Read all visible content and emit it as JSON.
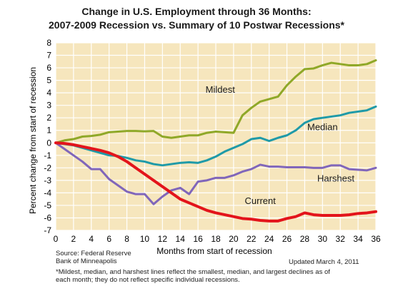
{
  "title_line1": "Change in U.S. Employment through 36 Months:",
  "title_line2": "2007-2009 Recession vs. Summary of 10 Postwar Recessions*",
  "source_line1": "Source: Federal Reserve",
  "source_line2": "Bank of Minneapolis",
  "updated": "Updated March 4, 2011",
  "footnote_line1": "*Mildest, median, and harshest lines reflect the smallest, median, and largest declines as of",
  "footnote_line2": "each month; they do not reflect specific individual recessions.",
  "colors": {
    "plot_bg": "#f6e6bd",
    "mildest": "#8fa828",
    "median": "#1f9aa8",
    "harshest": "#8066ba",
    "current": "#e3141b",
    "grid": "#ffffff"
  },
  "chart_data": {
    "type": "line",
    "xlabel": "Months from start of recession",
    "ylabel": "Percent change from start of recession",
    "xlim": [
      0,
      36
    ],
    "ylim": [
      -7,
      8
    ],
    "xticks": [
      0,
      2,
      4,
      6,
      8,
      10,
      12,
      14,
      16,
      18,
      20,
      22,
      24,
      26,
      28,
      30,
      32,
      34,
      36
    ],
    "yticks": [
      -7,
      -6,
      -5,
      -4,
      -3,
      -2,
      -1,
      0,
      1,
      2,
      3,
      4,
      5,
      6,
      7,
      8
    ],
    "grid": true,
    "x": [
      0,
      1,
      2,
      3,
      4,
      5,
      6,
      7,
      8,
      9,
      10,
      11,
      12,
      13,
      14,
      15,
      16,
      17,
      18,
      19,
      20,
      21,
      22,
      23,
      24,
      25,
      26,
      27,
      28,
      29,
      30,
      31,
      32,
      33,
      34,
      35,
      36
    ],
    "series": [
      {
        "name": "Mildest",
        "label": "Mildest",
        "color_key": "mildest",
        "values": [
          0,
          0.2,
          0.3,
          0.5,
          0.55,
          0.65,
          0.85,
          0.9,
          0.95,
          0.95,
          0.92,
          0.95,
          0.5,
          0.4,
          0.5,
          0.6,
          0.6,
          0.8,
          0.9,
          0.85,
          0.8,
          2.2,
          2.8,
          3.3,
          3.5,
          3.7,
          4.6,
          5.3,
          5.9,
          5.95,
          6.2,
          6.4,
          6.3,
          6.2,
          6.2,
          6.3,
          6.6
        ]
      },
      {
        "name": "Median",
        "label": "Median",
        "color_key": "median",
        "values": [
          0,
          -0.1,
          -0.2,
          -0.4,
          -0.6,
          -0.8,
          -1.0,
          -1.05,
          -1.2,
          -1.4,
          -1.5,
          -1.7,
          -1.8,
          -1.7,
          -1.6,
          -1.55,
          -1.6,
          -1.4,
          -1.1,
          -0.7,
          -0.4,
          -0.1,
          0.3,
          0.4,
          0.15,
          0.4,
          0.6,
          1.0,
          1.6,
          1.9,
          2.0,
          2.1,
          2.2,
          2.4,
          2.5,
          2.6,
          2.9
        ]
      },
      {
        "name": "Harshest",
        "label": "Harshest",
        "color_key": "harshest",
        "values": [
          0,
          -0.5,
          -1.0,
          -1.5,
          -2.1,
          -2.1,
          -2.9,
          -3.4,
          -3.9,
          -4.1,
          -4.1,
          -4.9,
          -4.3,
          -3.8,
          -3.6,
          -4.1,
          -3.1,
          -3.0,
          -2.8,
          -2.8,
          -2.6,
          -2.3,
          -2.1,
          -1.75,
          -1.9,
          -1.9,
          -1.95,
          -1.95,
          -1.95,
          -2.0,
          -2.0,
          -1.8,
          -1.8,
          -2.1,
          -2.15,
          -2.2,
          -2.0
        ]
      },
      {
        "name": "Current",
        "label": "Current",
        "color_key": "current",
        "values": [
          0,
          -0.05,
          -0.15,
          -0.3,
          -0.45,
          -0.6,
          -0.8,
          -1.1,
          -1.5,
          -2.0,
          -2.5,
          -3.0,
          -3.5,
          -4.0,
          -4.5,
          -4.8,
          -5.1,
          -5.4,
          -5.6,
          -5.75,
          -5.9,
          -6.05,
          -6.1,
          -6.2,
          -6.25,
          -6.25,
          -6.05,
          -5.9,
          -5.6,
          -5.75,
          -5.8,
          -5.8,
          -5.8,
          -5.75,
          -5.65,
          -5.6,
          -5.5
        ]
      }
    ]
  }
}
